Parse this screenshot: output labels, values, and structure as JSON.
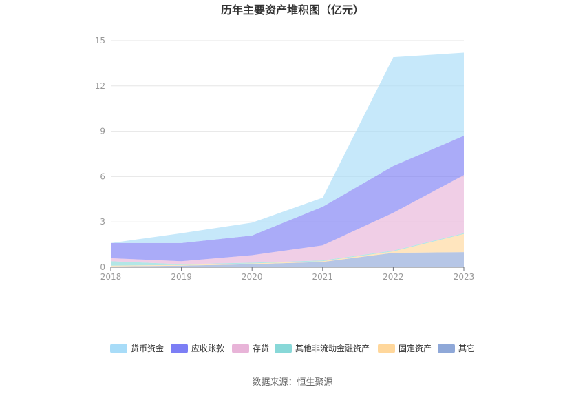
{
  "chart_data": {
    "type": "area",
    "stacked": true,
    "title": "历年主要资产堆积图（亿元）",
    "xlabel": "",
    "ylabel": "",
    "categories": [
      "2018",
      "2019",
      "2020",
      "2021",
      "2022",
      "2023"
    ],
    "ylim": [
      0,
      15
    ],
    "yticks": [
      "0",
      "3",
      "6",
      "9",
      "12",
      "15"
    ],
    "grid": true,
    "legend_position": "bottom",
    "series": [
      {
        "name": "其它",
        "color": "#8fa8d8",
        "values": [
          0.05,
          0.1,
          0.2,
          0.35,
          0.95,
          1.0
        ]
      },
      {
        "name": "固定资产",
        "color": "#ffd79b",
        "values": [
          0.05,
          0.05,
          0.05,
          0.05,
          0.1,
          1.2
        ]
      },
      {
        "name": "其他非流动金融资产",
        "color": "#88d8d8",
        "values": [
          0.3,
          0.05,
          0.05,
          0.05,
          0.05,
          0.05
        ]
      },
      {
        "name": "存货",
        "color": "#e8b4d8",
        "values": [
          0.2,
          0.2,
          0.5,
          1.0,
          2.5,
          3.85
        ]
      },
      {
        "name": "应收账款",
        "color": "#7c7ef5",
        "values": [
          1.0,
          1.2,
          1.3,
          2.55,
          3.1,
          2.6
        ]
      },
      {
        "name": "货币资金",
        "color": "#a8dcf8",
        "values": [
          0.0,
          0.65,
          0.85,
          0.6,
          7.2,
          5.5
        ]
      }
    ],
    "legend_order": [
      "货币资金",
      "应收账款",
      "存货",
      "其他非流动金融资产",
      "固定资产",
      "其它"
    ]
  },
  "footer": {
    "source": "数据来源：恒生聚源"
  }
}
